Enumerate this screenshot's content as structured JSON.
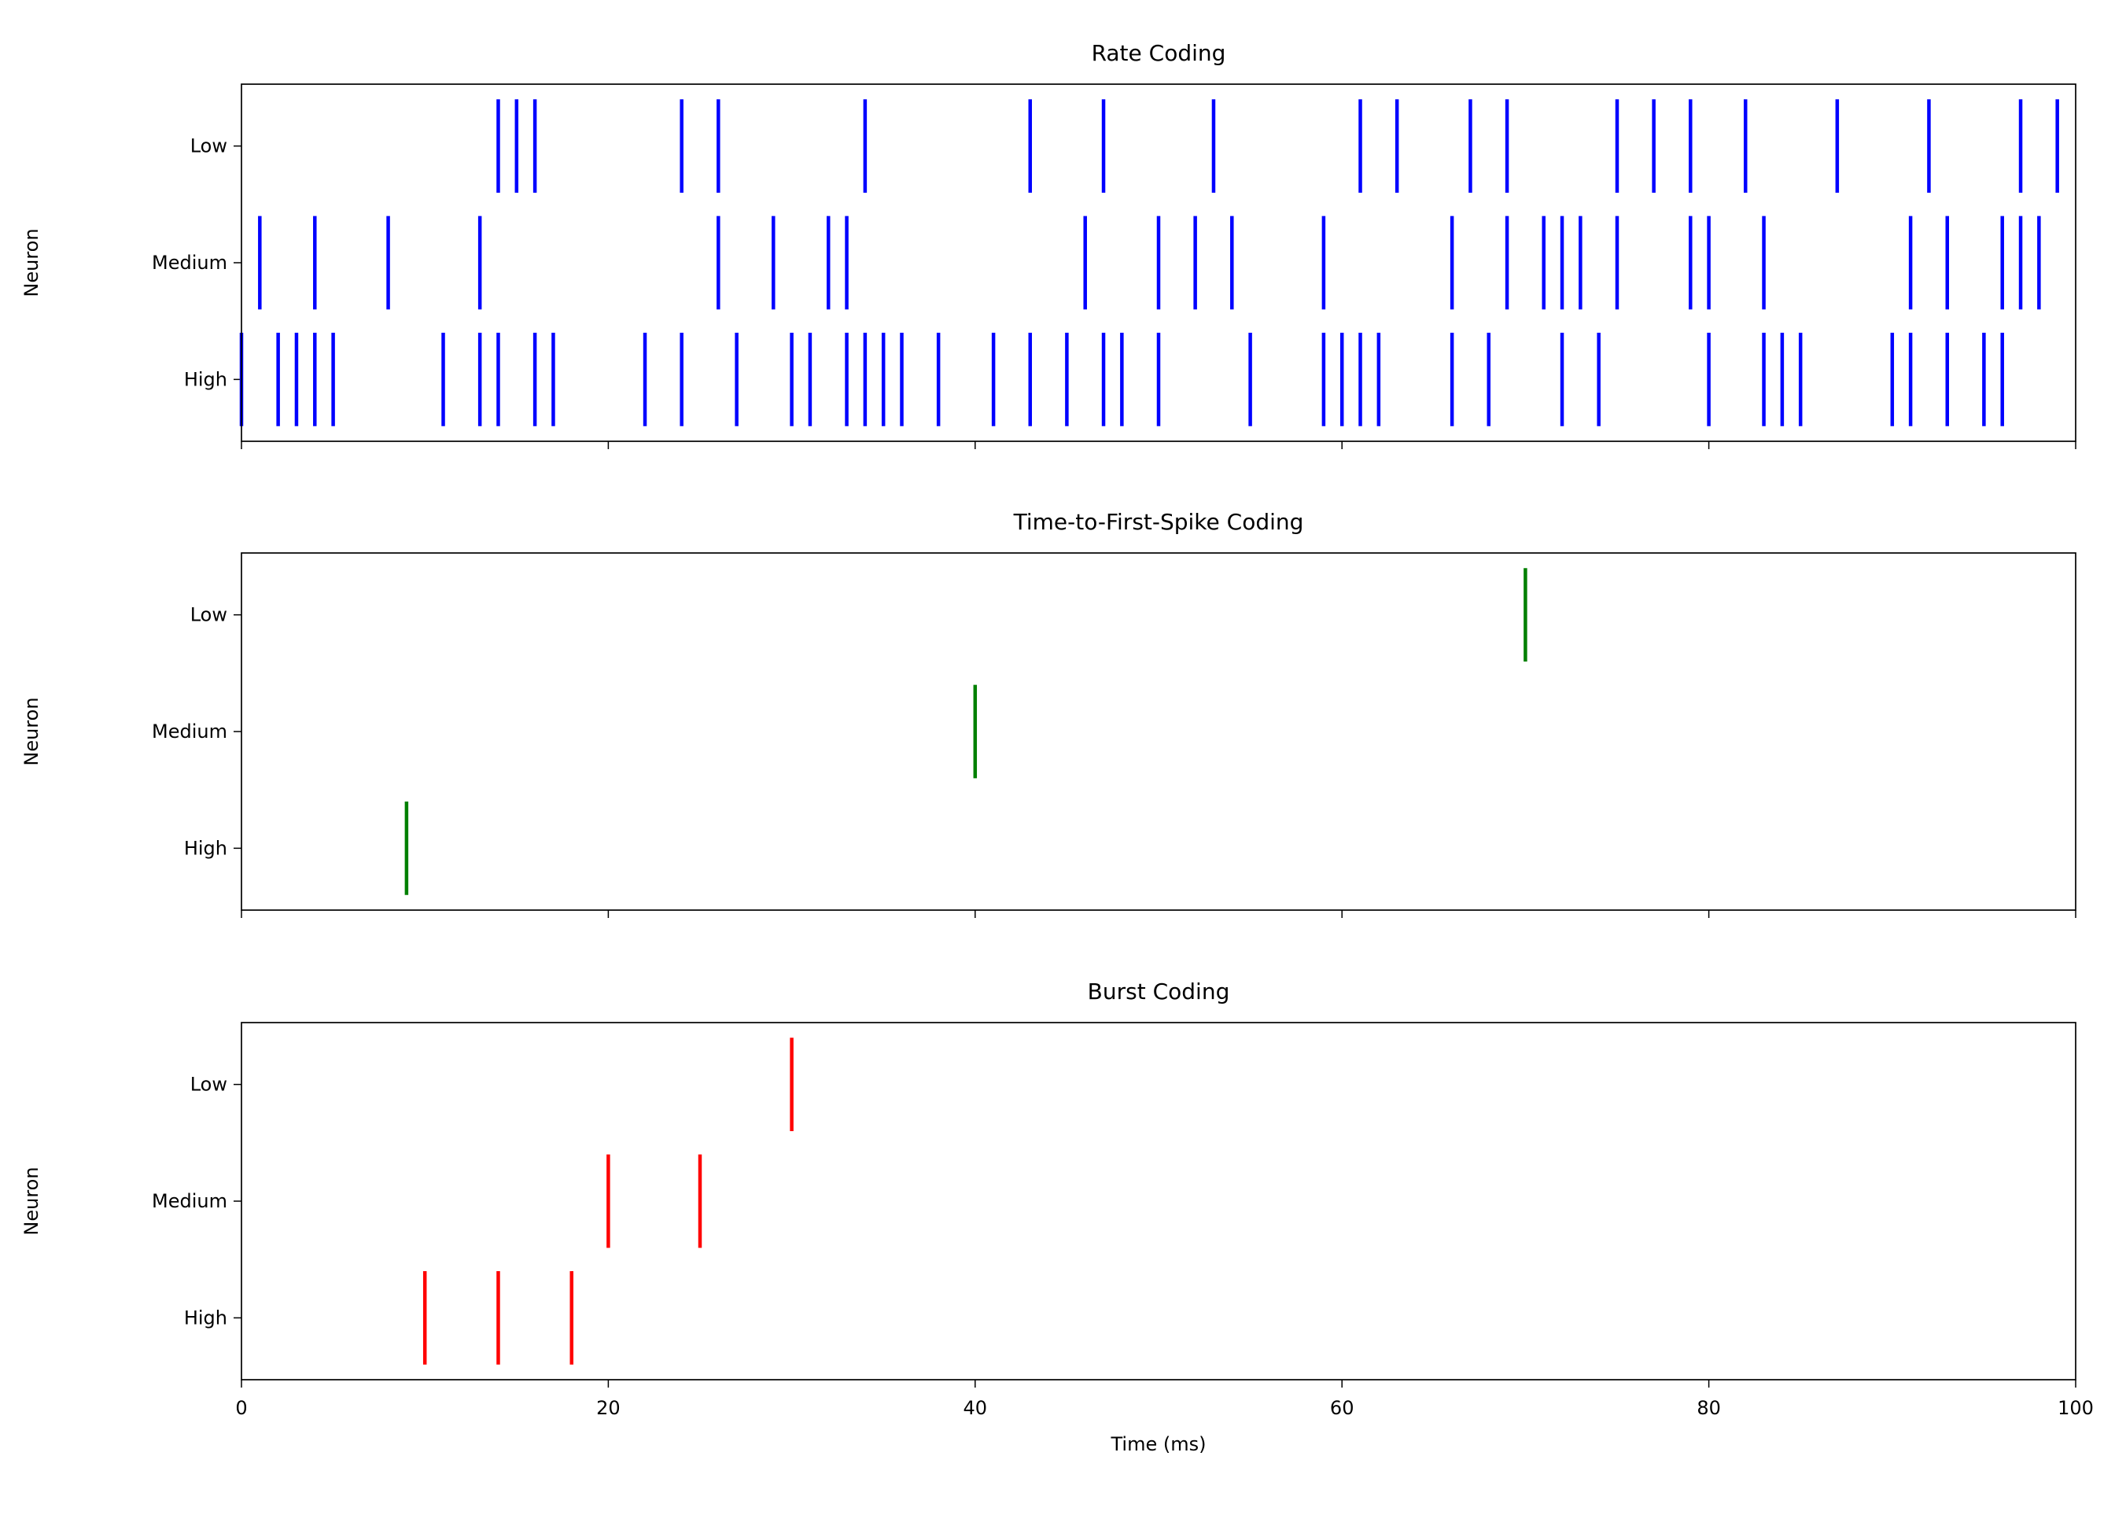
{
  "chart_data": [
    {
      "type": "eventplot",
      "title": "Rate Coding",
      "ylabel": "Neuron",
      "color": "#0000ff",
      "categories": [
        "High",
        "Medium",
        "Low"
      ],
      "events": [
        [
          0,
          2,
          3,
          4,
          5,
          11,
          13,
          14,
          16,
          17,
          22,
          24,
          27,
          30,
          31,
          33,
          34,
          35,
          36,
          38,
          41,
          43,
          45,
          47,
          48,
          50,
          55,
          59,
          60,
          61,
          62,
          66,
          68,
          72,
          74,
          80,
          83,
          84,
          85,
          90,
          91,
          93,
          95,
          96
        ],
        [
          1,
          4,
          8,
          13,
          26,
          29,
          32,
          33,
          46,
          50,
          52,
          54,
          59,
          66,
          69,
          71,
          72,
          73,
          75,
          79,
          80,
          83,
          91,
          93,
          96,
          97,
          98
        ],
        [
          14,
          15,
          16,
          24,
          26,
          34,
          43,
          47,
          53,
          61,
          63,
          67,
          69,
          75,
          77,
          79,
          82,
          87,
          92,
          97,
          99
        ]
      ],
      "xlim": [
        0,
        100
      ],
      "xticks": [
        0,
        20,
        40,
        60,
        80,
        100
      ],
      "ylim": [
        -0.53,
        2.53
      ]
    },
    {
      "type": "eventplot",
      "title": "Time-to-First-Spike Coding",
      "ylabel": "Neuron",
      "color": "#008000",
      "categories": [
        "High",
        "Medium",
        "Low"
      ],
      "events": [
        [
          9
        ],
        [
          40
        ],
        [
          70
        ]
      ],
      "xlim": [
        0,
        100
      ],
      "xticks": [
        0,
        20,
        40,
        60,
        80,
        100
      ],
      "ylim": [
        -0.53,
        2.53
      ]
    },
    {
      "type": "eventplot",
      "title": "Burst Coding",
      "ylabel": "Neuron",
      "xlabel": "Time (ms)",
      "color": "#ff0000",
      "categories": [
        "High",
        "Medium",
        "Low"
      ],
      "events": [
        [
          10,
          14,
          18
        ],
        [
          20,
          25
        ],
        [
          30
        ]
      ],
      "xlim": [
        0,
        100
      ],
      "xticks": [
        0,
        20,
        40,
        60,
        80,
        100
      ],
      "ylim": [
        -0.53,
        2.53
      ]
    }
  ]
}
